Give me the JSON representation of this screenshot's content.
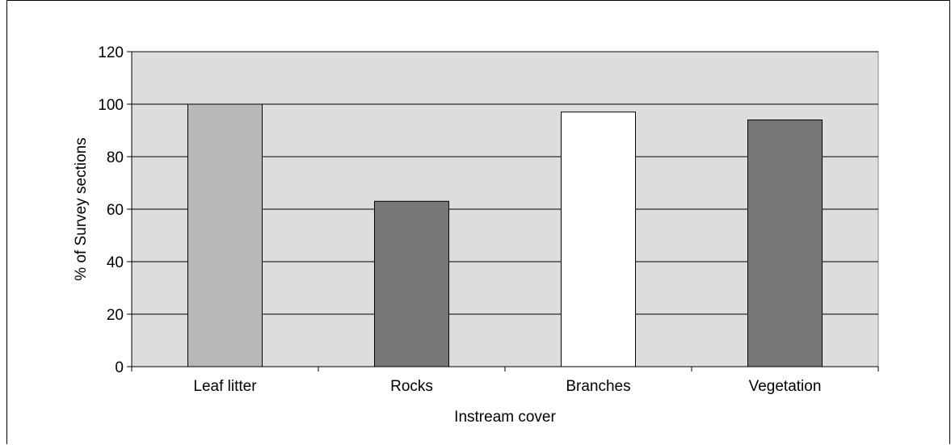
{
  "chart_data": {
    "type": "bar",
    "categories": [
      "Leaf litter",
      "Rocks",
      "Branches",
      "Vegetation"
    ],
    "values": [
      100,
      63,
      97,
      94
    ],
    "bar_colors": [
      "#b8b8b8",
      "#777777",
      "#ffffff",
      "#777777"
    ],
    "title": "",
    "xlabel": "Instream cover",
    "ylabel": "% of Survey sections",
    "ylim": [
      0,
      120
    ],
    "yticks": [
      0,
      20,
      40,
      60,
      80,
      100,
      120
    ],
    "grid": true,
    "plot_background": "#dddddd"
  }
}
